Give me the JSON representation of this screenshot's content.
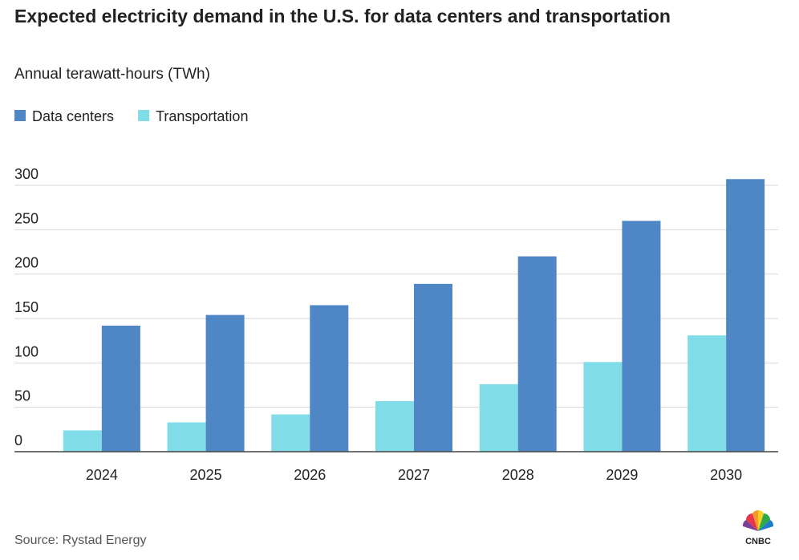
{
  "chart_data": {
    "type": "bar",
    "title": "Expected electricity demand in the U.S. for data centers and transportation",
    "subtitle": "Annual terawatt-hours (TWh)",
    "categories": [
      "2024",
      "2025",
      "2026",
      "2027",
      "2028",
      "2029",
      "2030"
    ],
    "series": [
      {
        "name": "Data centers",
        "color": "#4f86c6",
        "values": [
          142,
          154,
          165,
          189,
          220,
          260,
          307
        ]
      },
      {
        "name": "Transportation",
        "color": "#80dde8",
        "values": [
          24,
          33,
          42,
          57,
          76,
          101,
          131
        ]
      }
    ],
    "ylim": [
      0,
      300
    ],
    "yticks": [
      0,
      50,
      100,
      150,
      200,
      250,
      300
    ],
    "grid": true,
    "source": "Source: Rystad Energy",
    "logo": "CNBC"
  }
}
